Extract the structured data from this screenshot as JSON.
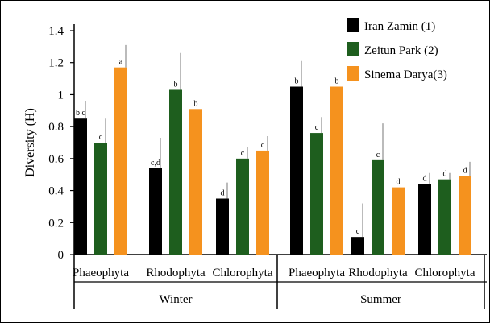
{
  "chart_data": {
    "type": "bar",
    "ylabel": "Diversity (H)",
    "ylim": [
      0,
      1.4
    ],
    "yticks": [
      "0",
      "0.2",
      "0.4",
      "0.6",
      "0.8",
      "1",
      "1.2",
      "1.4"
    ],
    "grid": false,
    "legend_position": "top-right",
    "groups": [
      {
        "season": "Winter",
        "categories": [
          {
            "label": "Phaeophyta",
            "bars": [
              {
                "series": "Iran Zamin (1)",
                "value": 0.85,
                "error": 0.11,
                "sig": "b c"
              },
              {
                "series": "Zeitun Park (2)",
                "value": 0.7,
                "error": 0.15,
                "sig": "c"
              },
              {
                "series": "Sinema Darya(3)",
                "value": 1.17,
                "error": 0.14,
                "sig": "a"
              }
            ]
          },
          {
            "label": "Rhodophyta",
            "bars": [
              {
                "series": "Iran Zamin (1)",
                "value": 0.54,
                "error": 0.19,
                "sig": "c,d"
              },
              {
                "series": "Zeitun Park (2)",
                "value": 1.03,
                "error": 0.23,
                "sig": "b"
              },
              {
                "series": "Sinema Darya(3)",
                "value": 0.91,
                "error": 0.0,
                "sig": "b"
              }
            ]
          },
          {
            "label": "Chlorophyta",
            "bars": [
              {
                "series": "Iran Zamin (1)",
                "value": 0.35,
                "error": 0.1,
                "sig": "d"
              },
              {
                "series": "Zeitun Park (2)",
                "value": 0.6,
                "error": 0.07,
                "sig": "c"
              },
              {
                "series": "Sinema Darya(3)",
                "value": 0.65,
                "error": 0.09,
                "sig": "c"
              }
            ]
          }
        ]
      },
      {
        "season": "Summer",
        "categories": [
          {
            "label": "Phaeophyta",
            "bars": [
              {
                "series": "Iran Zamin (1)",
                "value": 1.05,
                "error": 0.16,
                "sig": "b"
              },
              {
                "series": "Zeitun Park (2)",
                "value": 0.76,
                "error": 0.1,
                "sig": "c"
              },
              {
                "series": "Sinema Darya(3)",
                "value": 1.05,
                "error": 0.0,
                "sig": "b"
              }
            ]
          },
          {
            "label": "Rhodophyta",
            "bars": [
              {
                "series": "Iran Zamin (1)",
                "value": 0.11,
                "error": 0.21,
                "sig": "c"
              },
              {
                "series": "Zeitun Park (2)",
                "value": 0.59,
                "error": 0.23,
                "sig": "c"
              },
              {
                "series": "Sinema Darya(3)",
                "value": 0.42,
                "error": 0.0,
                "sig": "d"
              }
            ]
          },
          {
            "label": "Chlorophyta",
            "bars": [
              {
                "series": "Iran Zamin (1)",
                "value": 0.44,
                "error": 0.07,
                "sig": "d"
              },
              {
                "series": "Zeitun Park (2)",
                "value": 0.47,
                "error": 0.04,
                "sig": "d"
              },
              {
                "series": "Sinema Darya(3)",
                "value": 0.49,
                "error": 0.09,
                "sig": "d"
              }
            ]
          }
        ]
      }
    ],
    "series": [
      {
        "name": "Iran Zamin (1)",
        "color": "#000000"
      },
      {
        "name": "Zeitun Park (2)",
        "color": "#1e5e1e"
      },
      {
        "name": "Sinema Darya(3)",
        "color": "#f5921e"
      }
    ]
  }
}
